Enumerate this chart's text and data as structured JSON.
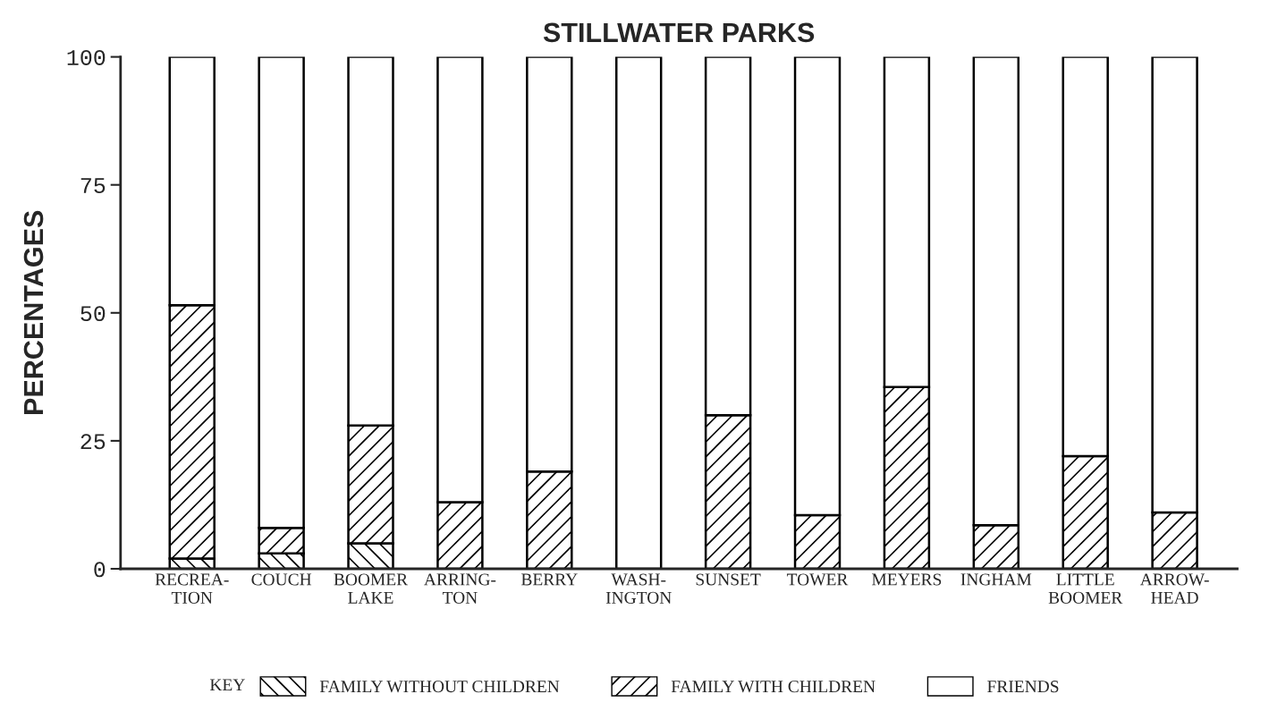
{
  "chart_data": {
    "type": "bar",
    "title": "STILLWATER PARKS",
    "ylabel": "PERCENTAGES",
    "legend_title": "KEY",
    "categories": [
      "RECREA-\nTION",
      "COUCH",
      "BOOMER\nLAKE",
      "ARRING-\nTON",
      "BERRY",
      "WASH-\nINGTON",
      "SUNSET",
      "TOWER",
      "MEYERS",
      "INGHAM",
      "LITTLE\nBOOMER",
      "ARROW-\nHEAD"
    ],
    "stacked": true,
    "series": [
      {
        "name": "FAMILY WITHOUT CHILDREN",
        "color": "#000000",
        "values": [
          2,
          3,
          5,
          0,
          0,
          0,
          0,
          0,
          0,
          0,
          0,
          0
        ]
      },
      {
        "name": "FAMILY WITH CHILDREN",
        "color": "#000000",
        "values": [
          49.5,
          5,
          23,
          13,
          19,
          0,
          30,
          10.5,
          35.5,
          8.5,
          22,
          11
        ]
      },
      {
        "name": "FRIENDS",
        "color": "#ffffff",
        "values": [
          48.5,
          92,
          72,
          87,
          81,
          100,
          70,
          89.5,
          64.5,
          91.5,
          78,
          89
        ]
      }
    ],
    "ylim": [
      0,
      100
    ],
    "yticks": [
      0,
      25,
      50,
      75,
      100
    ],
    "grid": false,
    "legend": "bottom"
  }
}
